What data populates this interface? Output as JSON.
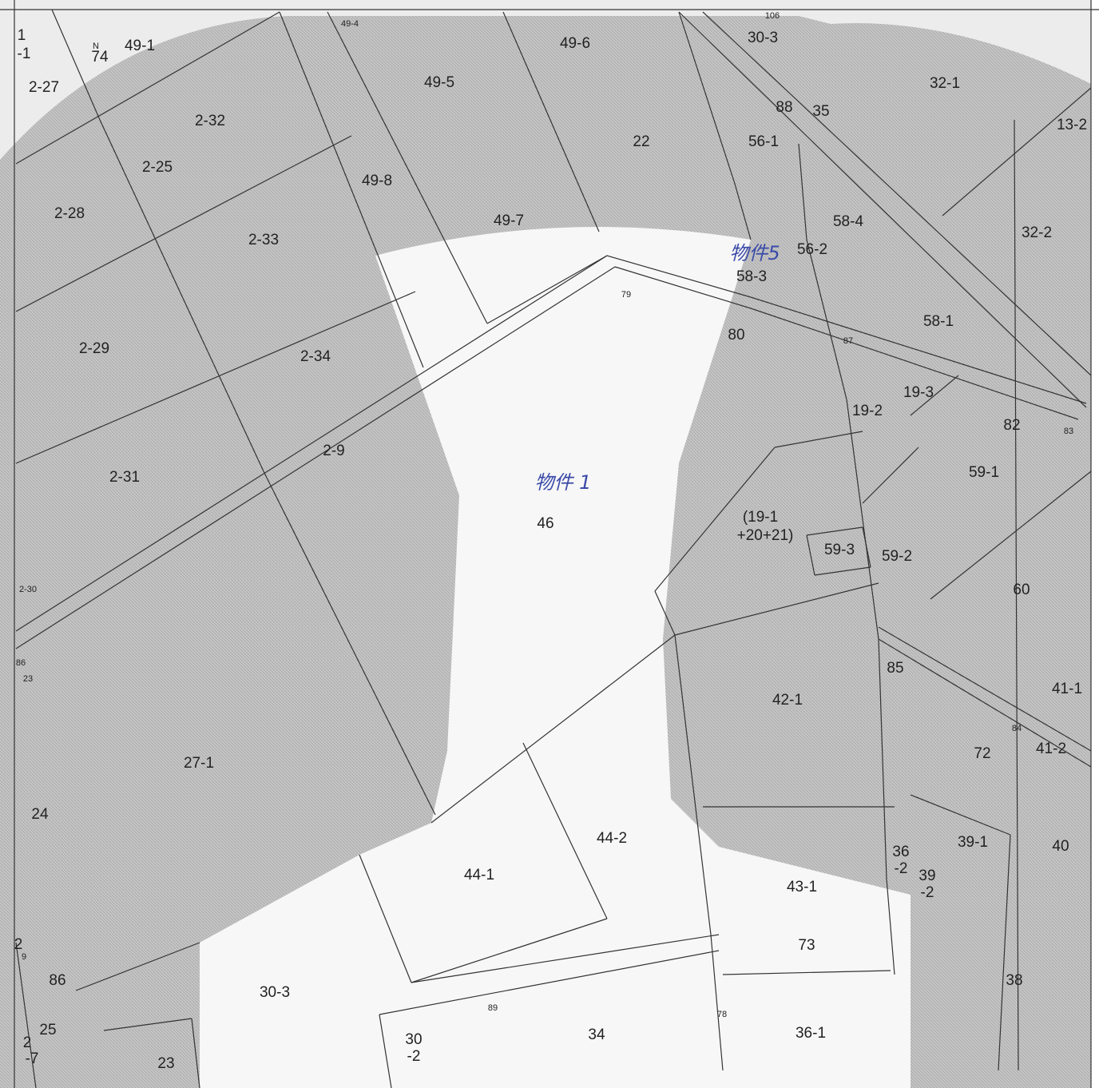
{
  "labels": [
    "1",
    "-1",
    "N",
    "74",
    "49-1",
    "2-27",
    "2-32",
    "2-25",
    "2-28",
    "2-33",
    "2-29",
    "2-34",
    "2-9",
    "2-31",
    "49-4",
    "49-5",
    "49-6",
    "22",
    "49-8",
    "49-7",
    "106",
    "30-3",
    "88",
    "35",
    "32-1",
    "13-2",
    "56-1",
    "58-4",
    "32-2",
    "56-2",
    "58-3",
    "79",
    "80",
    "58-1",
    "87",
    "19-3",
    "19-2",
    "82",
    "83",
    "59-1",
    "46",
    "(19-1",
    "+20+21)",
    "59-3",
    "59-2",
    "60",
    "2-30",
    "85",
    "41-1",
    "42-1",
    "86",
    "23",
    "72",
    "41-2",
    "84",
    "27-1",
    "24",
    "44-2",
    "39-1",
    "40",
    "36",
    "-2",
    "39",
    "-2",
    "44-1",
    "43-1",
    "73",
    "2",
    "9",
    "86",
    "30-3",
    "38",
    "89",
    "78",
    "25",
    "2",
    "-7",
    "30",
    "-2",
    "34",
    "36-1",
    "23"
  ],
  "annotations": [
    "物件5",
    "物件 1"
  ]
}
